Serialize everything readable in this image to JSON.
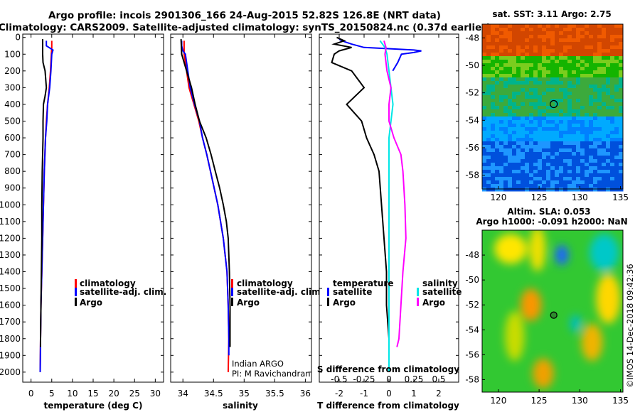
{
  "title": {
    "line1": "Argo profile: incois 2901306_166 24-Aug-2015 52.82S 126.8E (NRT data)",
    "line2": "Climatology: CARS2009. Satellite-adjusted climatology: synTS_20150824.nc (0.37d earlier)"
  },
  "colors": {
    "climatology": "#ff0000",
    "satellite": "#0000ff",
    "argo": "#000000",
    "magenta": "#ff00ff",
    "cyan": "#00e6e6"
  },
  "depth_ticks": [
    "0",
    "100",
    "200",
    "300",
    "400",
    "500",
    "600",
    "700",
    "800",
    "900",
    "1000",
    "1100",
    "1200",
    "1300",
    "1400",
    "1500",
    "1600",
    "1700",
    "1800",
    "1900",
    "2000"
  ],
  "chart_data": [
    {
      "type": "line",
      "name": "temperature",
      "xlabel": "temperature (deg C)",
      "ylabel": "depth",
      "xlim": [
        -2,
        32
      ],
      "ylim": [
        2060,
        -20
      ],
      "xticks": [
        0,
        5,
        10,
        15,
        20,
        25,
        30
      ],
      "xtick_labels": [
        "0",
        "5",
        "10",
        "15",
        "20",
        "25",
        "30"
      ],
      "legend": [
        "climatology",
        "satellite-adj. clim.",
        "Argo"
      ],
      "series": [
        {
          "name": "climatology",
          "color": "#ff0000",
          "depth": [
            20,
            60,
            100,
            200,
            300,
            400,
            500,
            600,
            800,
            1000,
            1200,
            1400,
            1600,
            1800,
            2000
          ],
          "values": [
            5.0,
            5.0,
            4.9,
            4.7,
            4.4,
            4.0,
            3.7,
            3.5,
            3.2,
            3.0,
            2.8,
            2.6,
            2.4,
            2.3,
            2.2
          ]
        },
        {
          "name": "satellite-adj. clim.",
          "color": "#0000ff",
          "depth": [
            20,
            50,
            75,
            100,
            200,
            300,
            400,
            500,
            600,
            800,
            1000,
            1200,
            1400,
            1600,
            1800,
            2000
          ],
          "values": [
            3.7,
            3.7,
            5.3,
            5.0,
            4.8,
            4.5,
            4.0,
            3.8,
            3.5,
            3.2,
            3.0,
            2.8,
            2.6,
            2.4,
            2.3,
            2.2
          ]
        },
        {
          "name": "Argo",
          "color": "#000000",
          "depth": [
            10,
            100,
            150,
            200,
            300,
            350,
            400,
            500,
            600,
            800,
            1000,
            1200,
            1400,
            1600,
            1800,
            1850
          ],
          "values": [
            2.8,
            2.8,
            2.9,
            3.4,
            3.7,
            3.4,
            3.0,
            2.9,
            2.9,
            2.7,
            2.6,
            2.6,
            2.5,
            2.4,
            2.3,
            2.3
          ]
        }
      ]
    },
    {
      "type": "line",
      "name": "salinity",
      "xlabel": "salinity",
      "ylabel": "depth",
      "xlim": [
        33.8,
        36.1
      ],
      "ylim": [
        2060,
        -20
      ],
      "xticks": [
        34,
        34.5,
        35,
        35.5,
        36
      ],
      "xtick_labels": [
        "34",
        "34.5",
        "35",
        "35.5",
        "36"
      ],
      "legend": [
        "climatology",
        "satellite-adj. clim.",
        "Argo"
      ],
      "annotation": [
        "Indian ARGO",
        "PI: M Ravichandran"
      ],
      "series": [
        {
          "name": "climatology",
          "color": "#ff0000",
          "depth": [
            20,
            100,
            200,
            300,
            400,
            500,
            600,
            700,
            800,
            1000,
            1200,
            1400,
            1600,
            1800,
            2000
          ],
          "values": [
            34.02,
            34.02,
            34.06,
            34.1,
            34.18,
            34.26,
            34.32,
            34.39,
            34.45,
            34.57,
            34.66,
            34.72,
            34.74,
            34.75,
            34.74
          ]
        },
        {
          "name": "satellite-adj. clim.",
          "color": "#0000ff",
          "depth": [
            20,
            50,
            80,
            100,
            150,
            200,
            300,
            400,
            500,
            600,
            700,
            800,
            1000,
            1200,
            1400,
            1600,
            1800,
            1900
          ],
          "values": [
            33.98,
            33.98,
            34.0,
            34.04,
            34.06,
            34.08,
            34.12,
            34.19,
            34.27,
            34.32,
            34.39,
            34.45,
            34.57,
            34.66,
            34.72,
            34.74,
            34.75,
            34.75
          ]
        },
        {
          "name": "Argo",
          "color": "#000000",
          "depth": [
            10,
            100,
            200,
            300,
            400,
            500,
            600,
            700,
            800,
            900,
            1000,
            1100,
            1200,
            1400,
            1600,
            1800,
            1850
          ],
          "values": [
            33.97,
            33.98,
            34.06,
            34.14,
            34.2,
            34.27,
            34.38,
            34.46,
            34.53,
            34.6,
            34.66,
            34.71,
            34.74,
            34.76,
            34.77,
            34.77,
            34.77
          ]
        }
      ]
    },
    {
      "type": "line",
      "name": "difference",
      "xlabel": "T difference from climatology",
      "xlabel_top": "S difference from climatology",
      "xlim": [
        -2.8,
        2.8
      ],
      "ylim": [
        2060,
        -20
      ],
      "xticks": [
        -2,
        -1,
        0,
        1,
        2
      ],
      "xtick_labels": [
        "-2",
        "-1",
        "0",
        "1",
        "2"
      ],
      "xticks_top": [
        -0.5,
        -0.25,
        0,
        0.25,
        0.5
      ],
      "xtick_labels_top": [
        "-0.5",
        "-0.25",
        "0",
        "0.25",
        "0.5"
      ],
      "legend_left_title": "temperature",
      "legend_right_title": "salinity",
      "legend_left": [
        "satellite",
        "Argo"
      ],
      "legend_right": [
        "satellite",
        "Argo"
      ],
      "series": [
        {
          "name": "T satellite",
          "color": "#0000ff",
          "depth": [
            10,
            20,
            40,
            60,
            75,
            80,
            90,
            100,
            150,
            200
          ],
          "values": [
            -2.0,
            -1.9,
            -1.5,
            -1.0,
            1.0,
            1.3,
            1.0,
            0.5,
            0.35,
            0.15
          ]
        },
        {
          "name": "T Argo",
          "color": "#000000",
          "depth": [
            0,
            20,
            40,
            60,
            80,
            100,
            150,
            200,
            300,
            400,
            500,
            600,
            700,
            800,
            1000,
            1200,
            1400,
            1600,
            1800,
            1850
          ],
          "values": [
            -2.1,
            -1.8,
            -2.2,
            -1.5,
            -2.0,
            -2.2,
            -2.3,
            -1.5,
            -1.0,
            -1.7,
            -1.1,
            -0.9,
            -0.6,
            -0.4,
            -0.3,
            -0.2,
            -0.1,
            -0.1,
            0.0,
            0.0
          ]
        },
        {
          "name": "S satellite",
          "color": "#00e6e6",
          "depth": [
            20,
            60,
            100,
            200,
            300,
            400,
            500,
            600,
            800,
            1000,
            1200,
            1400,
            1600,
            1800,
            2000
          ],
          "values": [
            -0.09,
            -0.04,
            -0.02,
            0.0,
            0.02,
            0.04,
            0.02,
            0.0,
            0.0,
            0.0,
            0.0,
            0.0,
            0.0,
            0.0,
            0.0
          ]
        },
        {
          "name": "S Argo",
          "color": "#ff00ff",
          "depth": [
            20,
            60,
            100,
            200,
            300,
            400,
            500,
            600,
            700,
            800,
            1000,
            1200,
            1400,
            1600,
            1800,
            1850
          ],
          "values": [
            -0.05,
            -0.03,
            -0.04,
            -0.02,
            0.02,
            0.0,
            0.0,
            0.05,
            0.12,
            0.14,
            0.16,
            0.17,
            0.14,
            0.12,
            0.1,
            0.08
          ]
        }
      ]
    },
    {
      "type": "heatmap",
      "name": "sat-sst",
      "title": "sat. SST: 3.11 Argo: 2.75",
      "xlim": [
        118,
        135.3
      ],
      "ylim": [
        -59,
        -47
      ],
      "xticks": [
        120,
        125,
        130,
        135
      ],
      "xtick_labels": [
        "120",
        "125",
        "130",
        "135"
      ],
      "yticks": [
        -48,
        -50,
        -52,
        -54,
        -56,
        -58
      ],
      "ytick_labels": [
        "-48",
        "-50",
        "-52",
        "-54",
        "-56",
        "-58"
      ],
      "marker": {
        "lon": 126.8,
        "lat": -52.82
      },
      "bands": [
        {
          "from_lat": -47,
          "to_lat": -49.2,
          "color": "#d24600",
          "alt": "#f05a00"
        },
        {
          "from_lat": -49.2,
          "to_lat": -50.8,
          "color": "#14b400",
          "alt": "#7acd1e"
        },
        {
          "from_lat": -50.8,
          "to_lat": -53.8,
          "color": "#3caa3c",
          "alt": "#00b48c"
        },
        {
          "from_lat": -53.8,
          "to_lat": -55.6,
          "color": "#00aaff",
          "alt": "#0080ff"
        },
        {
          "from_lat": -55.6,
          "to_lat": -59,
          "color": "#0050dc",
          "alt": "#1e96ff"
        }
      ]
    },
    {
      "type": "heatmap",
      "name": "altimetry",
      "title_line1": "Altim. SLA: 0.053",
      "title_line2": "Argo h1000: -0.091 h2000: NaN",
      "xlim": [
        118,
        135.3
      ],
      "ylim": [
        -59,
        -46
      ],
      "xticks": [
        120,
        125,
        130,
        135
      ],
      "xtick_labels": [
        "120",
        "125",
        "130",
        "135"
      ],
      "yticks": [
        -48,
        -50,
        -52,
        -54,
        -56,
        -58
      ],
      "ytick_labels": [
        "-48",
        "-50",
        "-52",
        "-54",
        "-56",
        "-58"
      ],
      "marker": {
        "lon": 126.8,
        "lat": -52.82
      },
      "base_color": "#32c832",
      "blobs": [
        {
          "lon": 121.5,
          "lat": -47.5,
          "rx": 2.0,
          "ry": 1.2,
          "color": "#ffe600"
        },
        {
          "lon": 124.8,
          "lat": -47.5,
          "rx": 1.0,
          "ry": 1.8,
          "color": "#f0e000"
        },
        {
          "lon": 127.8,
          "lat": -48.0,
          "rx": 0.8,
          "ry": 0.8,
          "color": "#1e64ff"
        },
        {
          "lon": 133.0,
          "lat": -47.8,
          "rx": 1.8,
          "ry": 1.5,
          "color": "#00c8c8"
        },
        {
          "lon": 133.5,
          "lat": -51.5,
          "rx": 1.5,
          "ry": 2.0,
          "color": "#ffd700"
        },
        {
          "lon": 124.0,
          "lat": -52.0,
          "rx": 1.3,
          "ry": 1.3,
          "color": "#fa9600"
        },
        {
          "lon": 122.0,
          "lat": -54.5,
          "rx": 1.2,
          "ry": 2.0,
          "color": "#c8dc00"
        },
        {
          "lon": 131.5,
          "lat": -55.0,
          "rx": 1.3,
          "ry": 1.5,
          "color": "#f0b400"
        },
        {
          "lon": 125.5,
          "lat": -57.5,
          "rx": 1.3,
          "ry": 1.2,
          "color": "#f0a000"
        },
        {
          "lon": 129.5,
          "lat": -53.5,
          "rx": 0.7,
          "ry": 0.7,
          "color": "#00bebe"
        }
      ]
    }
  ],
  "credit": "©IMOS 14-Dec-2018 09:42:36"
}
